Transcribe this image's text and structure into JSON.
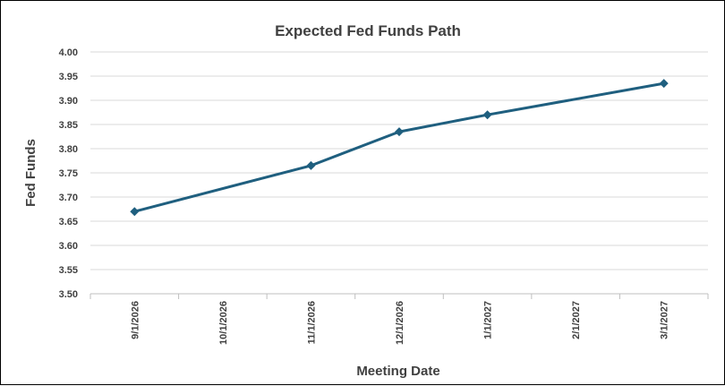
{
  "chart_data": {
    "type": "line",
    "title": "Expected Fed Funds Path",
    "xlabel": "Meeting Date",
    "ylabel": "Fed Funds",
    "categories": [
      "9/1/2026",
      "10/1/2026",
      "11/1/2026",
      "12/1/2026",
      "1/1/2027",
      "2/1/2027",
      "3/1/2027"
    ],
    "points": [
      {
        "x": "9/1/2026",
        "y": 3.67
      },
      {
        "x": "11/1/2026",
        "y": 3.765
      },
      {
        "x": "12/1/2026",
        "y": 3.835
      },
      {
        "x": "1/1/2027",
        "y": 3.87
      },
      {
        "x": "3/1/2027",
        "y": 3.935
      }
    ],
    "ylim": [
      3.5,
      4.0
    ],
    "yticks": [
      "3.50",
      "3.55",
      "3.60",
      "3.65",
      "3.70",
      "3.75",
      "3.80",
      "3.85",
      "3.90",
      "3.95",
      "4.00"
    ],
    "grid": true,
    "line_color": "#1f5f7f"
  }
}
